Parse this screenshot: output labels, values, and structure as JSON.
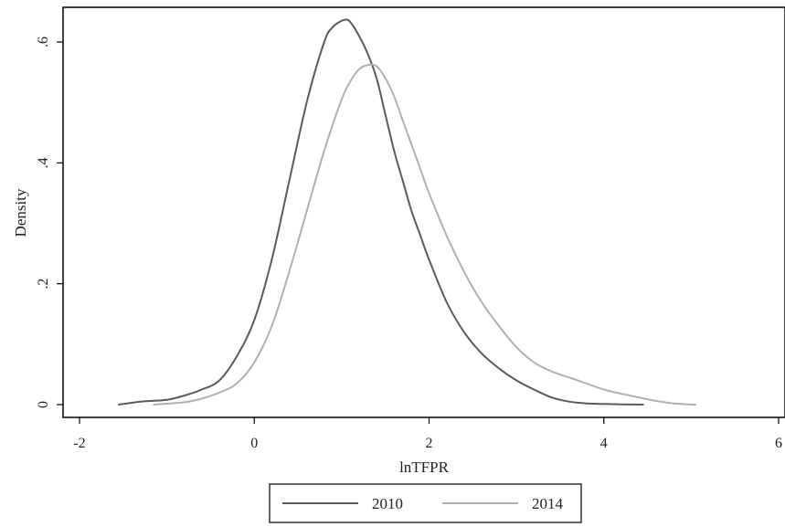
{
  "chart_data": {
    "type": "line",
    "xlabel": "lnTFPR",
    "ylabel": "Density",
    "xlim": [
      -2,
      6
    ],
    "ylim": [
      0,
      0.6
    ],
    "x_ticks": [
      {
        "value": -2,
        "label": "-2"
      },
      {
        "value": 0,
        "label": "0"
      },
      {
        "value": 2,
        "label": "2"
      },
      {
        "value": 4,
        "label": "4"
      },
      {
        "value": 6,
        "label": "6"
      }
    ],
    "y_ticks": [
      {
        "value": 0,
        "label": "0"
      },
      {
        "value": 0.2,
        "label": ".2"
      },
      {
        "value": 0.4,
        "label": ".4"
      },
      {
        "value": 0.6,
        "label": ".6"
      }
    ],
    "grid": false,
    "legend_position": "bottom",
    "series": [
      {
        "name": "2010",
        "color": "#5a5a5a",
        "x": [
          -1.55,
          -1.3,
          -1.0,
          -0.8,
          -0.6,
          -0.4,
          -0.2,
          0.0,
          0.2,
          0.4,
          0.6,
          0.8,
          0.9,
          1.0,
          1.05,
          1.1,
          1.2,
          1.3,
          1.4,
          1.5,
          1.6,
          1.7,
          1.8,
          1.9,
          2.0,
          2.2,
          2.4,
          2.6,
          2.8,
          3.0,
          3.2,
          3.4,
          3.6,
          3.8,
          4.0,
          4.45
        ],
        "y": [
          0.0,
          0.005,
          0.008,
          0.015,
          0.025,
          0.04,
          0.08,
          0.14,
          0.24,
          0.37,
          0.5,
          0.6,
          0.625,
          0.635,
          0.637,
          0.633,
          0.61,
          0.58,
          0.54,
          0.48,
          0.42,
          0.37,
          0.32,
          0.28,
          0.24,
          0.17,
          0.12,
          0.085,
          0.06,
          0.04,
          0.025,
          0.012,
          0.005,
          0.002,
          0.001,
          0.0
        ]
      },
      {
        "name": "2014",
        "color": "#b0b0b0",
        "x": [
          -1.15,
          -0.8,
          -0.6,
          -0.4,
          -0.2,
          0.0,
          0.2,
          0.4,
          0.6,
          0.8,
          1.0,
          1.1,
          1.2,
          1.3,
          1.4,
          1.5,
          1.6,
          1.7,
          1.8,
          1.9,
          2.0,
          2.2,
          2.4,
          2.6,
          2.8,
          3.0,
          3.2,
          3.4,
          3.6,
          3.8,
          4.0,
          4.2,
          4.4,
          4.6,
          4.8,
          5.05
        ],
        "y": [
          0.0,
          0.004,
          0.01,
          0.02,
          0.035,
          0.07,
          0.13,
          0.22,
          0.32,
          0.42,
          0.505,
          0.535,
          0.555,
          0.562,
          0.56,
          0.54,
          0.51,
          0.47,
          0.43,
          0.39,
          0.35,
          0.28,
          0.22,
          0.17,
          0.13,
          0.095,
          0.07,
          0.055,
          0.045,
          0.035,
          0.025,
          0.018,
          0.012,
          0.006,
          0.002,
          0.0
        ]
      }
    ]
  }
}
